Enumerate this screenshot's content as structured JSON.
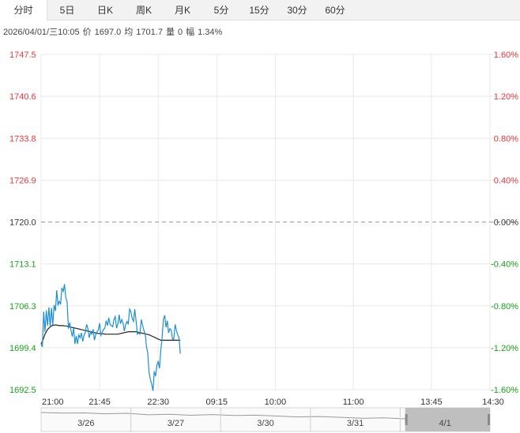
{
  "tabs": [
    {
      "label": "分时",
      "active": true
    },
    {
      "label": "5日",
      "active": false
    },
    {
      "label": "日K",
      "active": false
    },
    {
      "label": "周K",
      "active": false
    },
    {
      "label": "月K",
      "active": false
    },
    {
      "label": "5分",
      "active": false
    },
    {
      "label": "15分",
      "active": false
    },
    {
      "label": "30分",
      "active": false
    },
    {
      "label": "60分",
      "active": false
    }
  ],
  "info": {
    "datetime": "2026/04/01/三10:05",
    "price_label": "价",
    "price": "1697.0",
    "avg_label": "均",
    "avg": "1701.7",
    "volume_label": "量",
    "volume": "0",
    "change_label": "幅",
    "change": "1.34%"
  },
  "colors": {
    "up": "#e4393c",
    "down": "#1aa11a",
    "price_line": "#1d8ed6",
    "avg_line": "#222222",
    "grid": "#e8e8e8",
    "baseline": "#999999",
    "axis_text": "#333333"
  },
  "chart_data": {
    "type": "line",
    "y_ticks": [
      "1747.5",
      "1740.6",
      "1733.8",
      "1726.9",
      "1720.0",
      "1713.1",
      "1706.3",
      "1699.4",
      "1692.5"
    ],
    "pct_ticks": [
      "1.60%",
      "1.20%",
      "0.80%",
      "0.40%",
      "0.00%",
      "-0.40%",
      "-0.80%",
      "-1.20%",
      "-1.60%"
    ],
    "ylim": [
      1692.5,
      1747.5
    ],
    "prev_close": 1720.0,
    "x_ticks": [
      "21:00",
      "21:45",
      "22:30",
      "09:15",
      "10:00",
      "11:00",
      "13:45",
      "14:30"
    ],
    "x_tick_index": [
      0,
      45,
      90,
      135,
      180,
      240,
      300,
      345
    ],
    "total_points": 345,
    "price": [
      1700.0,
      1699.5,
      1705.3,
      1702.0,
      1705.5,
      1703.0,
      1706.0,
      1702.8,
      1705.9,
      1703.1,
      1706.4,
      1705.4,
      1708.8,
      1706.3,
      1707.0,
      1706.5,
      1709.2,
      1708.6,
      1709.8,
      1707.5,
      1707.0,
      1702.5,
      1703.5,
      1702.2,
      1701.2,
      1702.6,
      1700.0,
      1701.3,
      1700.0,
      1701.5,
      1701.0,
      1701.8,
      1700.4,
      1701.4,
      1701.9,
      1703.2,
      1702.5,
      1701.0,
      1702.0,
      1701.6,
      1702.4,
      1700.6,
      1701.5,
      1702.0,
      1702.3,
      1703.4,
      1701.4,
      1701.9,
      1702.4,
      1702.6,
      1703.8,
      1703.0,
      1704.3,
      1703.2,
      1703.0,
      1702.8,
      1704.0,
      1704.5,
      1702.6,
      1703.2,
      1704.8,
      1703.3,
      1704.0,
      1703.4,
      1702.1,
      1703.2,
      1703.7,
      1703.2,
      1705.7,
      1705.3,
      1704.2,
      1703.7,
      1705.7,
      1703.8,
      1701.6,
      1701.8,
      1701.6,
      1704.0,
      1703.1,
      1702.2,
      1701.7,
      1699.5,
      1698.5,
      1695.3,
      1694.2,
      1693.4,
      1692.3,
      1695.5,
      1694.7,
      1696.5,
      1697.2,
      1696.0,
      1699.0,
      1701.0,
      1704.0,
      1704.7,
      1702.7,
      1703.8,
      1701.8,
      1702.5,
      1702.3,
      1700.8,
      1700.8,
      1703.2,
      1702.2,
      1701.5,
      1701.0,
      1698.4
    ],
    "avg": [
      1700.0,
      1700.4,
      1701.0,
      1701.6,
      1702.0,
      1702.4,
      1702.6,
      1702.8,
      1702.95,
      1703.05,
      1703.1,
      1703.1,
      1703.1,
      1703.05,
      1703.0,
      1703.0,
      1703.0,
      1703.0,
      1702.95,
      1702.95,
      1702.9,
      1702.85,
      1702.8,
      1702.75,
      1702.7,
      1702.65,
      1702.6,
      1702.55,
      1702.5,
      1702.45,
      1702.4,
      1702.35,
      1702.3,
      1702.25,
      1702.2,
      1702.15,
      1702.1,
      1702.05,
      1702.0,
      1701.95,
      1701.9,
      1701.85,
      1701.8,
      1701.75,
      1701.72,
      1701.7,
      1701.68,
      1701.66,
      1701.64,
      1701.62,
      1701.6,
      1701.6,
      1701.6,
      1701.6,
      1701.6,
      1701.6,
      1701.6,
      1701.6,
      1701.6,
      1701.6,
      1701.65,
      1701.7,
      1701.75,
      1701.8,
      1701.85,
      1701.9,
      1701.95,
      1702.0,
      1702.0,
      1702.0,
      1702.0,
      1702.0,
      1702.0,
      1702.0,
      1701.95,
      1701.9,
      1701.85,
      1701.8,
      1701.75,
      1701.7,
      1701.65,
      1701.6,
      1701.55,
      1701.5,
      1701.4,
      1701.3,
      1701.2,
      1701.1,
      1701.0,
      1700.9,
      1700.8,
      1700.7,
      1700.6,
      1700.6,
      1700.6,
      1700.6,
      1700.6,
      1700.6,
      1700.6,
      1700.6,
      1700.6,
      1700.6,
      1700.6,
      1700.6,
      1700.6,
      1700.6,
      1700.6,
      1700.6
    ]
  },
  "navigator": {
    "dates": [
      "3/26",
      "3/27",
      "3/30",
      "3/31",
      "4/1"
    ],
    "selected_fraction": [
      0.811,
      1.0
    ]
  }
}
